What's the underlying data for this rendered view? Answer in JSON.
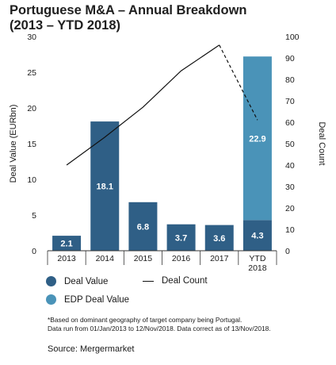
{
  "title_line1": "Portuguese M&A – Annual Breakdown",
  "title_line2": "(2013 – YTD 2018)",
  "chart_data": {
    "type": "bar",
    "categories": [
      "2013",
      "2014",
      "2015",
      "2016",
      "2017",
      "YTD 2018"
    ],
    "series": [
      {
        "name": "Deal Value",
        "values": [
          2.1,
          18.1,
          6.8,
          3.7,
          3.6,
          4.3
        ],
        "color": "#2f5f86"
      },
      {
        "name": "EDP Deal Value",
        "values": [
          0,
          0,
          0,
          0,
          0,
          22.9
        ],
        "color": "#4a93b8"
      },
      {
        "name": "Deal Count",
        "type": "line",
        "axis": "right",
        "values": [
          40,
          53,
          67,
          84,
          96,
          61
        ],
        "projected_last_segment": true
      }
    ],
    "bar_labels": [
      "2.1",
      "18.1",
      "6.8",
      "3.7",
      "3.6",
      "4.3"
    ],
    "edp_label": "22.9",
    "ylabel": "Deal Value (EURbn)",
    "y2label": "Deal Count",
    "ylim": [
      0,
      30
    ],
    "y2lim": [
      0,
      100
    ],
    "yticks": [
      "0",
      "5",
      "10",
      "15",
      "20",
      "25",
      "30"
    ],
    "y2ticks": [
      "0",
      "10",
      "20",
      "30",
      "40",
      "50",
      "60",
      "70",
      "80",
      "90",
      "100"
    ],
    "legend_position": "bottom",
    "grid": false
  },
  "legend": {
    "deal_value": "Deal Value",
    "deal_count": "Deal Count",
    "edp_deal_value": "EDP Deal Value"
  },
  "footnote_line1": "*Based on dominant geography of target company being Portugal.",
  "footnote_line2": "Data run from 01/Jan/2013 to 12/Nov/2018. Data correct as of 13/Nov/2018.",
  "source": "Source: Mergermarket"
}
